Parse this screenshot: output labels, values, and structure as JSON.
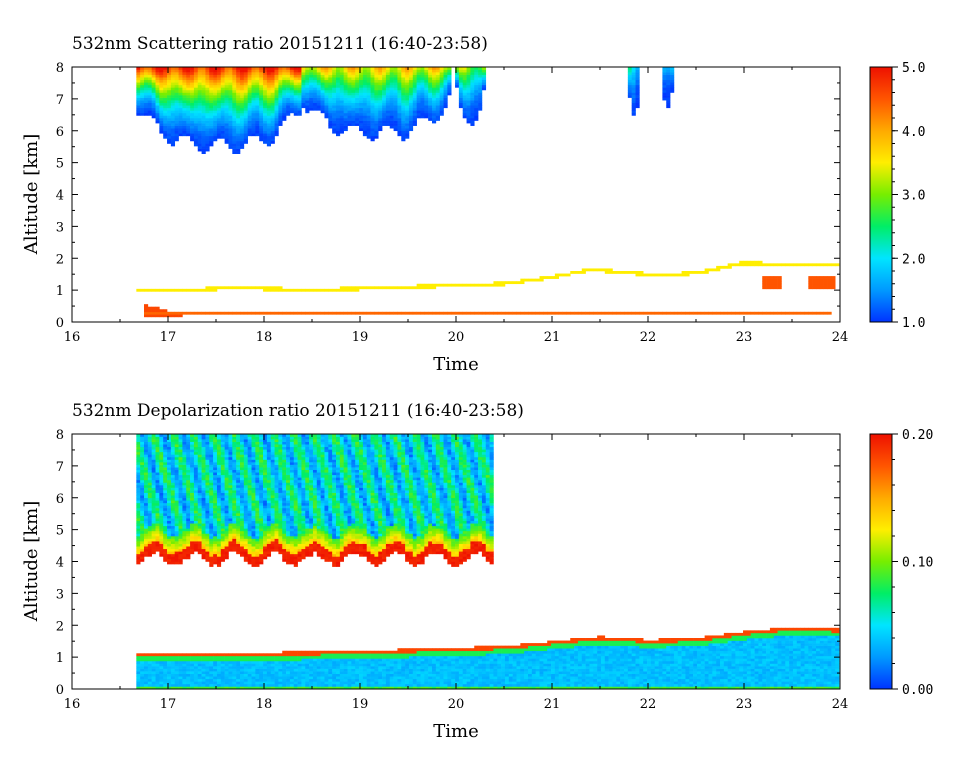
{
  "chart_data": [
    {
      "type": "heatmap",
      "title": "532nm Scattering ratio  20151211 (16:40-23:58)",
      "xlabel": "Time",
      "ylabel": "Altitude [km]",
      "xlim": [
        16,
        24
      ],
      "ylim": [
        0,
        8
      ],
      "xticks": [
        16,
        17,
        18,
        19,
        20,
        21,
        22,
        23,
        24
      ],
      "yticks": [
        0,
        1,
        2,
        3,
        4,
        5,
        6,
        7,
        8
      ],
      "colorbar": {
        "min": 1.0,
        "max": 5.0,
        "ticks": [
          "1.0",
          "2.0",
          "3.0",
          "4.0",
          "5.0"
        ]
      },
      "data_time_range": [
        16.67,
        23.97
      ],
      "features": {
        "upper_cloud_segments": [
          {
            "t": [
              16.67,
              18.4
            ],
            "top": 8.0,
            "base": 5.5,
            "peak_ratio": 4.8
          },
          {
            "t": [
              18.4,
              19.95
            ],
            "top": 8.0,
            "base": 5.9,
            "peak_ratio": 3.6
          },
          {
            "t": [
              20.0,
              20.3
            ],
            "top": 8.0,
            "base": 6.4,
            "peak_ratio": 3.0
          },
          {
            "t": [
              21.8,
              21.9
            ],
            "top": 8.0,
            "base": 6.6,
            "peak_ratio": 2.0
          },
          {
            "t": [
              22.15,
              22.25
            ],
            "top": 8.0,
            "base": 6.8,
            "peak_ratio": 2.0
          }
        ],
        "boundary_layer_top": [
          [
            16.75,
            1.0
          ],
          [
            17.2,
            1.0
          ],
          [
            17.5,
            1.05
          ],
          [
            18.0,
            1.05
          ],
          [
            18.5,
            1.0
          ],
          [
            19.0,
            1.05
          ],
          [
            19.5,
            1.1
          ],
          [
            20.0,
            1.15
          ],
          [
            20.5,
            1.2
          ],
          [
            21.0,
            1.4
          ],
          [
            21.4,
            1.65
          ],
          [
            21.8,
            1.55
          ],
          [
            22.2,
            1.45
          ],
          [
            22.6,
            1.6
          ],
          [
            23.0,
            1.85
          ],
          [
            23.5,
            1.8
          ],
          [
            23.9,
            1.8
          ]
        ],
        "near_surface_line": {
          "t": [
            16.75,
            23.9
          ],
          "alt": 0.25
        },
        "surface_plume": {
          "t": [
            16.75,
            17.15
          ],
          "alt": [
            0.2,
            0.55
          ]
        },
        "low_patches": [
          {
            "t": [
              23.2,
              23.4
            ],
            "alt": [
              1.05,
              1.45
            ],
            "ratio": 4.5
          },
          {
            "t": [
              23.65,
              23.95
            ],
            "alt": [
              1.05,
              1.45
            ],
            "ratio": 4.5
          }
        ]
      }
    },
    {
      "type": "heatmap",
      "title": "532nm Depolarization ratio  20151211 (16:40-23:58)",
      "xlabel": "Time",
      "ylabel": "Altitude [km]",
      "xlim": [
        16,
        24
      ],
      "ylim": [
        0,
        8
      ],
      "xticks": [
        16,
        17,
        18,
        19,
        20,
        21,
        22,
        23,
        24
      ],
      "yticks": [
        0,
        1,
        2,
        3,
        4,
        5,
        6,
        7,
        8
      ],
      "colorbar": {
        "min": 0.0,
        "max": 0.2,
        "ticks": [
          "0.00",
          "0.10",
          "0.20"
        ]
      },
      "data_time_range": [
        16.67,
        23.97
      ],
      "features": {
        "cloud_band": {
          "t": [
            16.67,
            20.4
          ],
          "top": 8.0,
          "base_range": [
            3.8,
            4.2
          ],
          "interior_ratio": 0.04,
          "edge_ratio": 0.19
        },
        "boundary_layer_top": [
          [
            16.75,
            1.15
          ],
          [
            17.5,
            1.1
          ],
          [
            18.0,
            1.15
          ],
          [
            19.0,
            1.2
          ],
          [
            20.0,
            1.3
          ],
          [
            20.5,
            1.35
          ],
          [
            21.0,
            1.5
          ],
          [
            21.5,
            1.65
          ],
          [
            22.0,
            1.55
          ],
          [
            22.5,
            1.6
          ],
          [
            23.0,
            1.8
          ],
          [
            23.5,
            1.95
          ],
          [
            23.9,
            1.9
          ]
        ],
        "boundary_layer_ratio": 0.03
      }
    }
  ],
  "colors": {
    "colormap": [
      "#0033ff",
      "#0099ff",
      "#00e5ff",
      "#00ee66",
      "#77ee00",
      "#ffee00",
      "#ffaa00",
      "#ff5500",
      "#ee1100"
    ]
  }
}
